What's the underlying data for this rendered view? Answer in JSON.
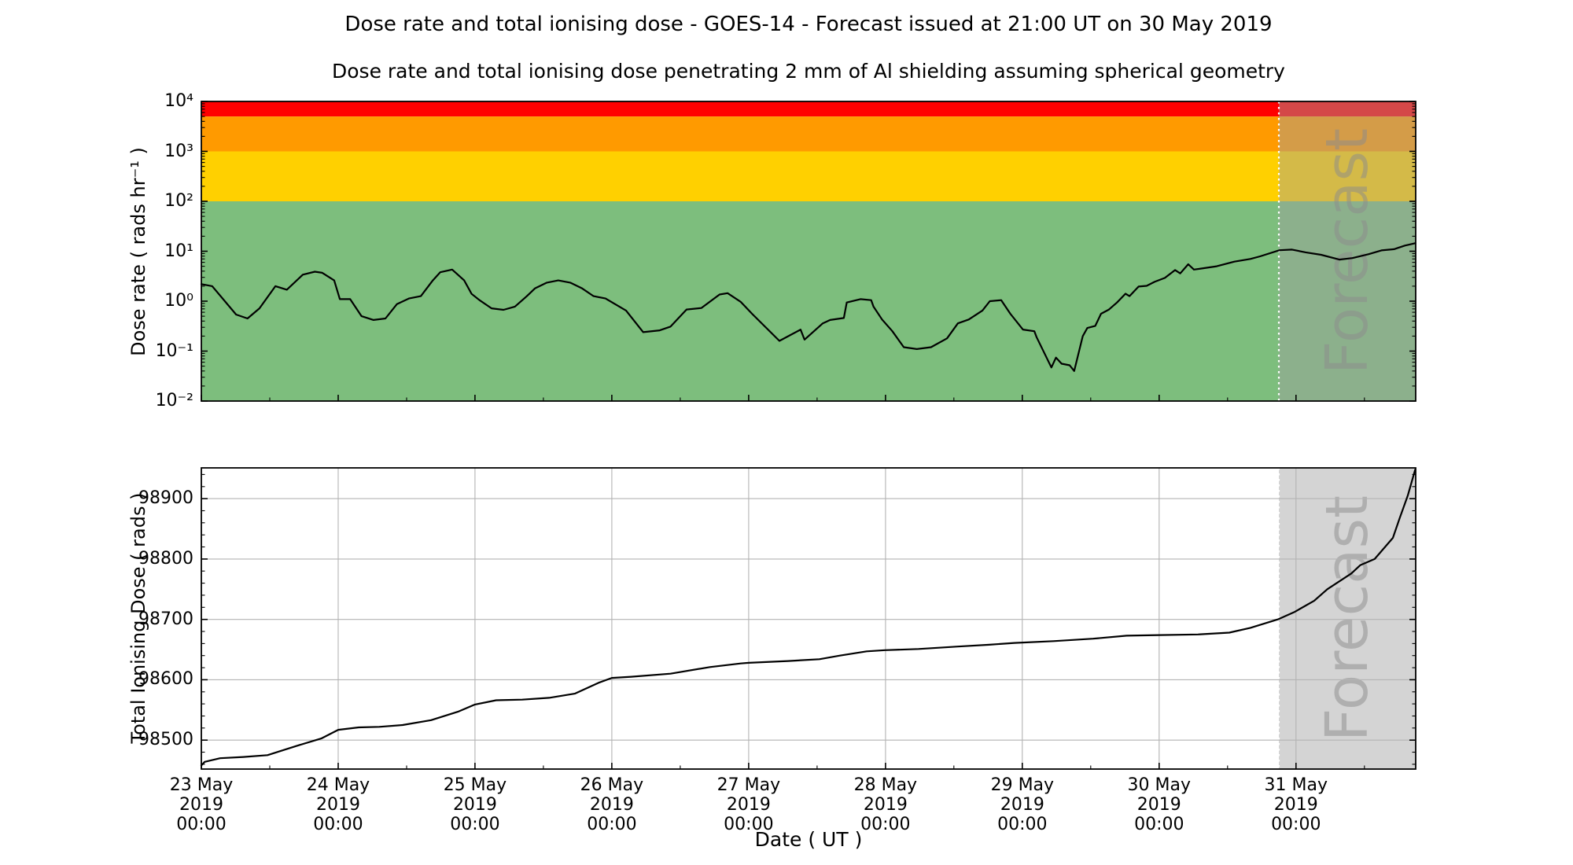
{
  "title": "Dose rate and total ionising dose - GOES-14 - Forecast issued at 21:00 UT on 30 May 2019",
  "subtitle": "Dose rate and total ionising dose penetrating 2 mm of Al shielding assuming spherical geometry",
  "x_axis": {
    "label": "Date ( UT )",
    "hours_max": 213,
    "minor_step_hours": 12,
    "ticks": [
      {
        "hour": 0,
        "lines": [
          "23 May",
          "2019",
          "00:00"
        ]
      },
      {
        "hour": 24,
        "lines": [
          "24 May",
          "2019",
          "00:00"
        ]
      },
      {
        "hour": 48,
        "lines": [
          "25 May",
          "2019",
          "00:00"
        ]
      },
      {
        "hour": 72,
        "lines": [
          "26 May",
          "2019",
          "00:00"
        ]
      },
      {
        "hour": 96,
        "lines": [
          "27 May",
          "2019",
          "00:00"
        ]
      },
      {
        "hour": 120,
        "lines": [
          "28 May",
          "2019",
          "00:00"
        ]
      },
      {
        "hour": 144,
        "lines": [
          "29 May",
          "2019",
          "00:00"
        ]
      },
      {
        "hour": 168,
        "lines": [
          "30 May",
          "2019",
          "00:00"
        ]
      },
      {
        "hour": 192,
        "lines": [
          "31 May",
          "2019",
          "00:00"
        ]
      }
    ]
  },
  "forecast": {
    "label": "Forecast",
    "start_hour": 189,
    "overlay_color": "#a0a0a0",
    "overlay_opacity": 0.45,
    "divider_color": "#ffffff",
    "label_color": "#8c8c8c",
    "label_opacity": 0.5,
    "label_size": 74
  },
  "colors": {
    "line": "#000000",
    "grid": "#b3b3b3",
    "spine": "#000000",
    "background": "#ffffff"
  },
  "chart_data": [
    {
      "type": "line",
      "name": "dose-rate",
      "ylabel": "Dose rate ( rads hr⁻¹ )",
      "yscale": "log",
      "ylim": [
        0.01,
        10000
      ],
      "yticks": [
        10000,
        1000,
        100,
        10,
        1,
        0.1,
        0.01
      ],
      "ytick_labels": [
        "10⁴",
        "10³",
        "10²",
        "10¹",
        "10⁰",
        "10⁻¹",
        "10⁻²"
      ],
      "bands": [
        {
          "level": "red",
          "lo": 5000,
          "hi": 10000,
          "color": "#ff0000"
        },
        {
          "level": "orange",
          "lo": 1000,
          "hi": 5000,
          "color": "#ff9a00"
        },
        {
          "level": "yellow",
          "lo": 100,
          "hi": 1000,
          "color": "#ffd000"
        },
        {
          "level": "green",
          "lo": 0.01,
          "hi": 100,
          "color": "#7dbe7d"
        }
      ],
      "x_hours": [
        0,
        1.9,
        6.1,
        8.1,
        10.2,
        13,
        15,
        17.8,
        19.9,
        21.2,
        23.3,
        24.3,
        26.1,
        28.1,
        30.2,
        32.3,
        34.3,
        36.4,
        38.5,
        40.6,
        41.9,
        44,
        46.1,
        47.4,
        48.8,
        50.9,
        53,
        55,
        57.1,
        58.5,
        60.6,
        62.6,
        64.7,
        66.8,
        68.8,
        70.9,
        74.5,
        77.5,
        80.4,
        82.3,
        85.1,
        87.7,
        90.9,
        92.3,
        94.6,
        96.6,
        101.4,
        105.1,
        105.8,
        109,
        110.3,
        112.7,
        113.2,
        115.6,
        117.5,
        117.9,
        119.4,
        121.2,
        123.2,
        125.5,
        128,
        130.8,
        132.7,
        134.6,
        137,
        138.3,
        140.3,
        141.9,
        144.1,
        146.1,
        146.5,
        149.1,
        149.9,
        150.9,
        152.3,
        153.1,
        154.6,
        155.4,
        156.8,
        157.8,
        159.2,
        160.6,
        162.1,
        162.8,
        164.4,
        165.8,
        167.2,
        169,
        170.8,
        171.7,
        173.1,
        174.1,
        175.4,
        178.1,
        181.2,
        184,
        185.7,
        189.1,
        191.3,
        193.7,
        196.4,
        199.6,
        201.9,
        204.7,
        207,
        209.2,
        211.1,
        212.9
      ],
      "values": [
        2.2,
        2.0,
        0.54,
        0.45,
        0.72,
        2.0,
        1.7,
        3.4,
        3.9,
        3.7,
        2.6,
        1.1,
        1.1,
        0.5,
        0.42,
        0.45,
        0.87,
        1.13,
        1.26,
        2.6,
        3.8,
        4.3,
        2.6,
        1.4,
        1.05,
        0.72,
        0.67,
        0.78,
        1.26,
        1.8,
        2.35,
        2.6,
        2.35,
        1.8,
        1.26,
        1.13,
        0.65,
        0.24,
        0.26,
        0.31,
        0.68,
        0.73,
        1.36,
        1.45,
        0.97,
        0.56,
        0.16,
        0.27,
        0.17,
        0.36,
        0.42,
        0.46,
        0.94,
        1.1,
        1.05,
        0.78,
        0.43,
        0.25,
        0.12,
        0.11,
        0.12,
        0.18,
        0.36,
        0.43,
        0.65,
        1.0,
        1.05,
        0.56,
        0.27,
        0.25,
        0.19,
        0.047,
        0.074,
        0.056,
        0.052,
        0.04,
        0.2,
        0.29,
        0.32,
        0.56,
        0.68,
        0.94,
        1.41,
        1.26,
        1.96,
        2.03,
        2.44,
        2.93,
        4.2,
        3.6,
        5.5,
        4.3,
        4.5,
        5.0,
        6.2,
        7.0,
        7.9,
        10.5,
        10.8,
        9.5,
        8.5,
        6.8,
        7.3,
        8.7,
        10.4,
        11.0,
        13.0,
        14.5
      ]
    },
    {
      "type": "line",
      "name": "total-ionising-dose",
      "ylabel": "Total Ionising Dose ( rads )",
      "yscale": "linear",
      "ylim": [
        98452,
        98951
      ],
      "yticks": [
        98500,
        98600,
        98700,
        98800,
        98900
      ],
      "ytick_labels": [
        "98500",
        "98600",
        "98700",
        "98800",
        "98900"
      ],
      "ytick_minor_step": 20,
      "grid": true,
      "x_hours": [
        0,
        0.6,
        3.3,
        7.4,
        11.6,
        16.6,
        21.1,
        24,
        27.6,
        31.2,
        35.3,
        40.3,
        45,
        48,
        51.7,
        56.3,
        61,
        65.5,
        69.7,
        72,
        75.4,
        82.3,
        89.2,
        94.6,
        96,
        102.9,
        108.4,
        112,
        116.7,
        119.9,
        125.8,
        132.7,
        138.2,
        142.6,
        149.5,
        156.4,
        162.3,
        168,
        174.8,
        180.3,
        184,
        188.8,
        191.7,
        195.2,
        197.5,
        201.7,
        203.3,
        205.8,
        209,
        210.2,
        211.6,
        212.9
      ],
      "values": [
        98458,
        98464,
        98470,
        98472,
        98475,
        98490,
        98503,
        98517,
        98521,
        98522,
        98525,
        98533,
        98547,
        98559,
        98566,
        98567,
        98570,
        98577,
        98595,
        98603,
        98605,
        98610,
        98621,
        98627,
        98628,
        98631,
        98634,
        98640,
        98647,
        98649,
        98651,
        98655,
        98658,
        98661,
        98664,
        98668,
        98673,
        98674,
        98675,
        98678,
        98686,
        98700,
        98712,
        98731,
        98750,
        98776,
        98790,
        98800,
        98835,
        98868,
        98905,
        98948
      ]
    }
  ]
}
